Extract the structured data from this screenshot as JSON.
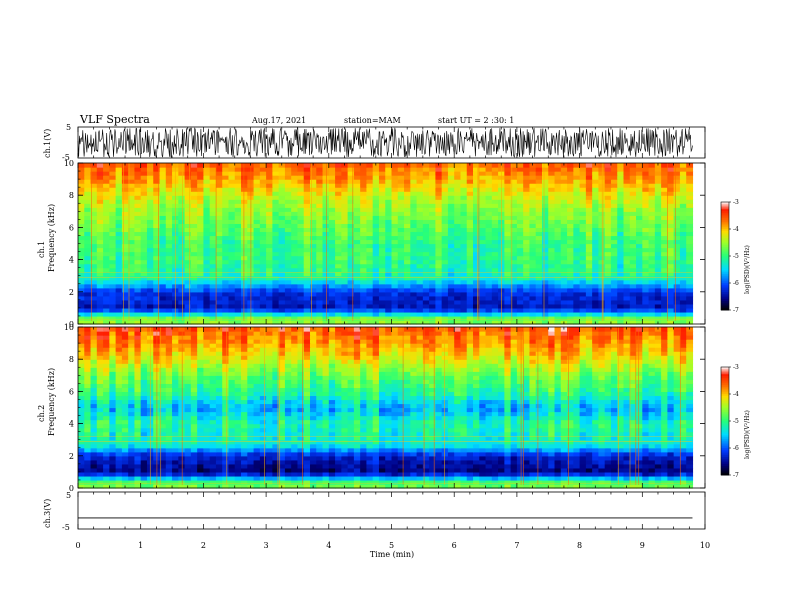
{
  "header": {
    "title": "VLF Spectra",
    "date": "Aug.17, 2021",
    "station": "station=MAM",
    "start": "start UT = 2 :30: 1"
  },
  "panels": {
    "ch1_wave": {
      "ylabel": "ch.1(V)",
      "yticks": [
        "5",
        "-5"
      ]
    },
    "ch1_spec": {
      "ylabel_line1": "ch.1",
      "ylabel_line2": "Frequency (kHz)"
    },
    "ch2_spec": {
      "ylabel_line1": "ch.2",
      "ylabel_line2": "Frequency (kHz)"
    },
    "ch3_wave": {
      "ylabel": "ch.3(V)",
      "yticks": [
        "5",
        "-5"
      ]
    }
  },
  "colorbar": {
    "label": "log(PSD)(V²/Hz)",
    "ticks": [
      "-3",
      "-4",
      "-5",
      "-6",
      "-7"
    ],
    "colors": [
      "#ffffff",
      "#ff3300",
      "#ffcc00",
      "#66ff33",
      "#00ffcc",
      "#0066ff",
      "#0000aa",
      "#000000"
    ]
  },
  "xaxis": {
    "label": "Time (min)"
  },
  "chart_data": [
    {
      "type": "line",
      "name": "ch.1(V)",
      "xlim": [
        0,
        10
      ],
      "ylim": [
        -5,
        5
      ],
      "description_values": {
        "waveform": "noise burst between -5 and 5 V across 0-9.8 min"
      }
    },
    {
      "type": "heatmap",
      "name": "ch.1",
      "xlabel": "Time (min)",
      "ylabel": "Frequency (kHz)",
      "xlim": [
        0,
        10
      ],
      "ylim": [
        0,
        10
      ],
      "xticks": [
        0,
        1,
        2,
        3,
        4,
        5,
        6,
        7,
        8,
        9,
        10
      ],
      "yticks": [
        0,
        2,
        4,
        6,
        8,
        10
      ],
      "data_end_x": 9.8,
      "zlabel": "log(PSD)(V²/Hz)",
      "zlim": [
        -7,
        -3
      ],
      "zticks": [
        -3,
        -4,
        -5,
        -6,
        -7
      ],
      "freq_profile": [
        {
          "f": 0.3,
          "z": -4.6
        },
        {
          "f": 1.0,
          "z": -6.4
        },
        {
          "f": 2.0,
          "z": -6.2
        },
        {
          "f": 2.9,
          "z": -5.2
        },
        {
          "f": 4.0,
          "z": -5.0
        },
        {
          "f": 5.0,
          "z": -5.0
        },
        {
          "f": 6.0,
          "z": -4.8
        },
        {
          "f": 7.0,
          "z": -4.6
        },
        {
          "f": 8.0,
          "z": -4.3
        },
        {
          "f": 9.0,
          "z": -3.9
        },
        {
          "f": 10.0,
          "z": -3.6
        }
      ]
    },
    {
      "type": "heatmap",
      "name": "ch.2",
      "xlabel": "Time (min)",
      "ylabel": "Frequency (kHz)",
      "xlim": [
        0,
        10
      ],
      "ylim": [
        0,
        10
      ],
      "xticks": [
        0,
        1,
        2,
        3,
        4,
        5,
        6,
        7,
        8,
        9,
        10
      ],
      "yticks": [
        0,
        2,
        4,
        6,
        8,
        10
      ],
      "data_end_x": 9.8,
      "zlabel": "log(PSD)(V²/Hz)",
      "zlim": [
        -7,
        -3
      ],
      "zticks": [
        -3,
        -4,
        -5,
        -6,
        -7
      ],
      "freq_profile": [
        {
          "f": 0.3,
          "z": -4.7
        },
        {
          "f": 1.0,
          "z": -6.6
        },
        {
          "f": 2.0,
          "z": -6.3
        },
        {
          "f": 2.7,
          "z": -5.3
        },
        {
          "f": 4.0,
          "z": -5.1
        },
        {
          "f": 5.0,
          "z": -5.6
        },
        {
          "f": 6.0,
          "z": -5.0
        },
        {
          "f": 7.0,
          "z": -4.7
        },
        {
          "f": 8.0,
          "z": -4.2
        },
        {
          "f": 9.0,
          "z": -3.8
        },
        {
          "f": 10.0,
          "z": -3.5
        }
      ]
    },
    {
      "type": "line",
      "name": "ch.3(V)",
      "xlim": [
        0,
        10
      ],
      "ylim": [
        -5,
        5
      ],
      "x": [
        0,
        9.8
      ],
      "y": [
        -2,
        -2
      ]
    }
  ]
}
